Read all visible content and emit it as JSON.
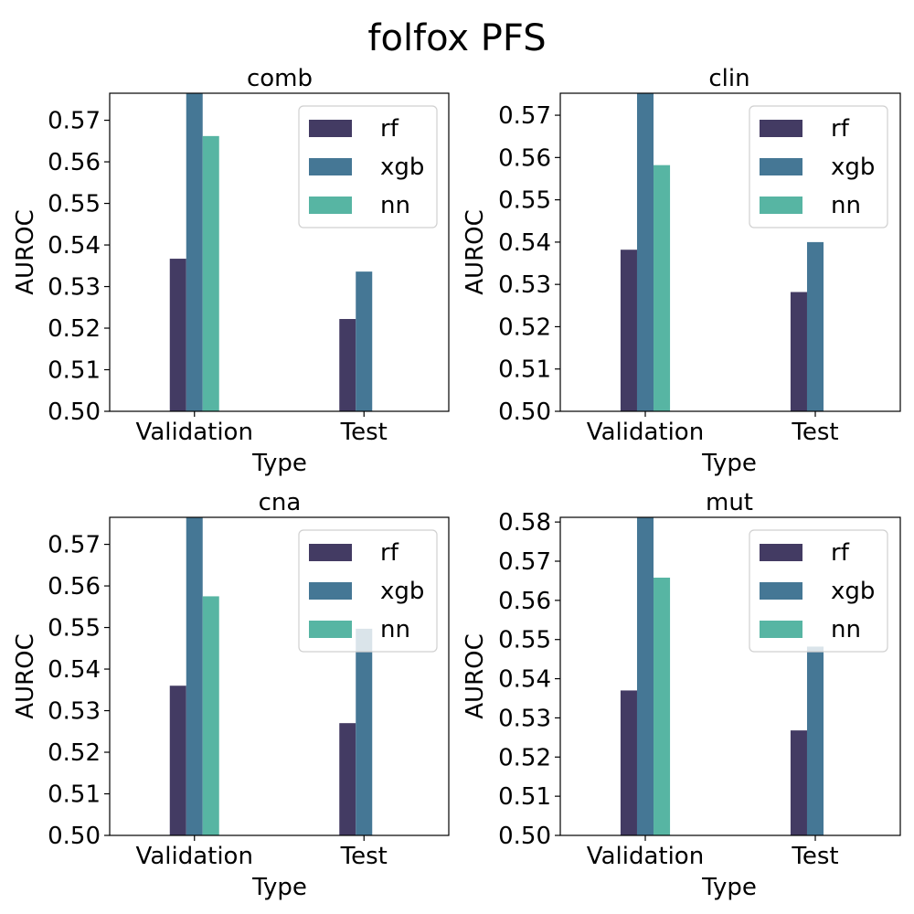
{
  "figure": {
    "suptitle": "folfox PFS"
  },
  "series_colors": {
    "rf": "#433b63",
    "xgb": "#457795",
    "nn": "#57b5a3"
  },
  "chart_data": [
    {
      "type": "bar",
      "title": "comb",
      "xlabel": "Type",
      "ylabel": "AUROC",
      "categories": [
        "Validation",
        "Test"
      ],
      "series": [
        {
          "name": "rf",
          "values": [
            0.5367,
            0.5222
          ]
        },
        {
          "name": "xgb",
          "values": [
            0.5765,
            0.5336
          ]
        },
        {
          "name": "nn",
          "values": [
            0.5662,
            0.5
          ]
        }
      ],
      "ylim": [
        0.5,
        0.5765
      ],
      "yticks": [
        "0.50",
        "0.51",
        "0.52",
        "0.53",
        "0.54",
        "0.55",
        "0.56",
        "0.57"
      ],
      "legend": "top-right",
      "grid": false
    },
    {
      "type": "bar",
      "title": "clin",
      "xlabel": "Type",
      "ylabel": "AUROC",
      "categories": [
        "Validation",
        "Test"
      ],
      "series": [
        {
          "name": "rf",
          "values": [
            0.5382,
            0.5282
          ]
        },
        {
          "name": "xgb",
          "values": [
            0.5752,
            0.54
          ]
        },
        {
          "name": "nn",
          "values": [
            0.5582,
            0.5
          ]
        }
      ],
      "ylim": [
        0.5,
        0.5752
      ],
      "yticks": [
        "0.50",
        "0.51",
        "0.52",
        "0.53",
        "0.54",
        "0.55",
        "0.56",
        "0.57"
      ],
      "legend": "top-right",
      "grid": false
    },
    {
      "type": "bar",
      "title": "cna",
      "xlabel": "Type",
      "ylabel": "AUROC",
      "categories": [
        "Validation",
        "Test"
      ],
      "series": [
        {
          "name": "rf",
          "values": [
            0.536,
            0.527
          ]
        },
        {
          "name": "xgb",
          "values": [
            0.5765,
            0.5497
          ]
        },
        {
          "name": "nn",
          "values": [
            0.5575,
            0.5
          ]
        }
      ],
      "ylim": [
        0.5,
        0.5765
      ],
      "yticks": [
        "0.50",
        "0.51",
        "0.52",
        "0.53",
        "0.54",
        "0.55",
        "0.56",
        "0.57"
      ],
      "legend": "top-right",
      "grid": false
    },
    {
      "type": "bar",
      "title": "mut",
      "xlabel": "Type",
      "ylabel": "AUROC",
      "categories": [
        "Validation",
        "Test"
      ],
      "series": [
        {
          "name": "rf",
          "values": [
            0.537,
            0.5268
          ]
        },
        {
          "name": "xgb",
          "values": [
            0.5812,
            0.5482
          ]
        },
        {
          "name": "nn",
          "values": [
            0.5658,
            0.5
          ]
        }
      ],
      "ylim": [
        0.5,
        0.5812
      ],
      "yticks": [
        "0.50",
        "0.51",
        "0.52",
        "0.53",
        "0.54",
        "0.55",
        "0.56",
        "0.57",
        "0.58"
      ],
      "legend": "top-right",
      "grid": false
    }
  ]
}
